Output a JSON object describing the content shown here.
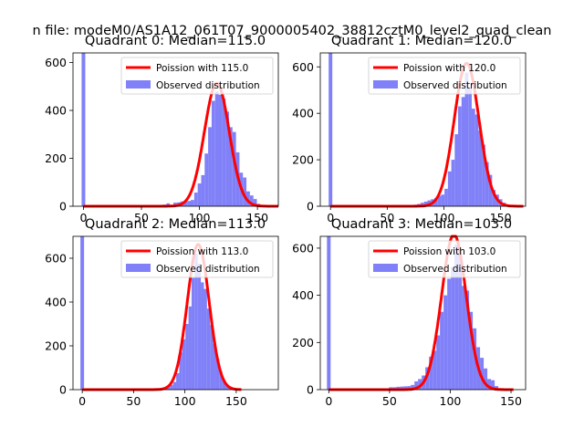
{
  "figure": {
    "suptitle": "n file: modeM0/AS1A12_061T07_9000005402_38812cztM0_level2_quad_clean"
  },
  "colors": {
    "bars": "#8080f8",
    "poisson": "#ff0000",
    "background": "#ffffff"
  },
  "chart_data": [
    {
      "type": "bar",
      "title": "Quadrant 0: Median=115.0",
      "xlim": [
        -9,
        168
      ],
      "ylim": [
        0,
        640
      ],
      "xticks": [
        0,
        50,
        100,
        150
      ],
      "yticks": [
        0,
        200,
        400,
        600
      ],
      "median": 115.0,
      "zero_spike": 660,
      "legend": [
        "Poission with 115.0",
        "Observed distribution"
      ],
      "hist_x": [
        58,
        61,
        64,
        67,
        70,
        73,
        76,
        79,
        82,
        85,
        88,
        91,
        94,
        97,
        100,
        103,
        106,
        109,
        112,
        115,
        118,
        121,
        124,
        127,
        130,
        133,
        136,
        139,
        142,
        145,
        148,
        151,
        154,
        157,
        160
      ],
      "hist_y": [
        3,
        4,
        2,
        6,
        7,
        12,
        5,
        15,
        16,
        20,
        19,
        22,
        26,
        57,
        95,
        130,
        220,
        330,
        440,
        480,
        465,
        450,
        395,
        330,
        310,
        225,
        140,
        120,
        62,
        45,
        30,
        10,
        5,
        3,
        2
      ]
    },
    {
      "type": "bar",
      "title": "Quadrant 1: Median=120.0",
      "xlim": [
        -9,
        172
      ],
      "ylim": [
        0,
        660
      ],
      "xticks": [
        0,
        50,
        100,
        150
      ],
      "yticks": [
        0,
        200,
        400,
        600
      ],
      "median": 120.0,
      "zero_spike": 660,
      "legend": [
        "Poission with 120.0",
        "Observed distribution"
      ],
      "hist_x": [
        60,
        63,
        66,
        69,
        72,
        75,
        78,
        81,
        84,
        87,
        90,
        93,
        96,
        99,
        102,
        105,
        108,
        111,
        114,
        117,
        120,
        123,
        126,
        129,
        132,
        135,
        138,
        141,
        144,
        147,
        150,
        153,
        156,
        159,
        162
      ],
      "hist_y": [
        3,
        3,
        5,
        6,
        4,
        7,
        10,
        15,
        20,
        25,
        30,
        35,
        45,
        50,
        75,
        150,
        200,
        310,
        430,
        470,
        575,
        510,
        420,
        395,
        325,
        265,
        190,
        135,
        70,
        50,
        30,
        15,
        6,
        3,
        2
      ]
    },
    {
      "type": "bar",
      "title": "Quadrant 2: Median=113.0",
      "xlim": [
        -9,
        191
      ],
      "ylim": [
        0,
        700
      ],
      "xticks": [
        0,
        50,
        100,
        150
      ],
      "yticks": [
        0,
        200,
        400,
        600
      ],
      "median": 113.0,
      "zero_spike": 700,
      "legend": [
        "Poission with 113.0",
        "Observed distribution"
      ],
      "hist_x": [
        75,
        78,
        81,
        84,
        87,
        90,
        93,
        96,
        99,
        102,
        105,
        108,
        111,
        114,
        117,
        120,
        123,
        126,
        129,
        132,
        135,
        138,
        141,
        144,
        147
      ],
      "hist_y": [
        2,
        4,
        6,
        12,
        22,
        35,
        75,
        170,
        230,
        300,
        380,
        510,
        620,
        575,
        490,
        460,
        370,
        295,
        210,
        140,
        85,
        45,
        20,
        10,
        4
      ]
    },
    {
      "type": "bar",
      "title": "Quadrant 3: Median=103.0",
      "xlim": [
        -7,
        162
      ],
      "ylim": [
        0,
        650
      ],
      "xticks": [
        0,
        50,
        100,
        150
      ],
      "yticks": [
        0,
        200,
        400,
        600
      ],
      "median": 103.0,
      "zero_spike": 660,
      "legend": [
        "Poission with 103.0",
        "Observed distribution"
      ],
      "hist_x": [
        51,
        54,
        57,
        60,
        63,
        66,
        69,
        72,
        75,
        78,
        81,
        84,
        87,
        90,
        93,
        96,
        99,
        102,
        105,
        108,
        111,
        114,
        117,
        120,
        123,
        126,
        129,
        132,
        135,
        138,
        141,
        144
      ],
      "hist_y": [
        10,
        10,
        12,
        13,
        14,
        15,
        20,
        35,
        45,
        60,
        95,
        140,
        165,
        230,
        330,
        400,
        470,
        520,
        615,
        580,
        440,
        420,
        330,
        260,
        180,
        135,
        90,
        45,
        40,
        15,
        6,
        3
      ]
    }
  ]
}
